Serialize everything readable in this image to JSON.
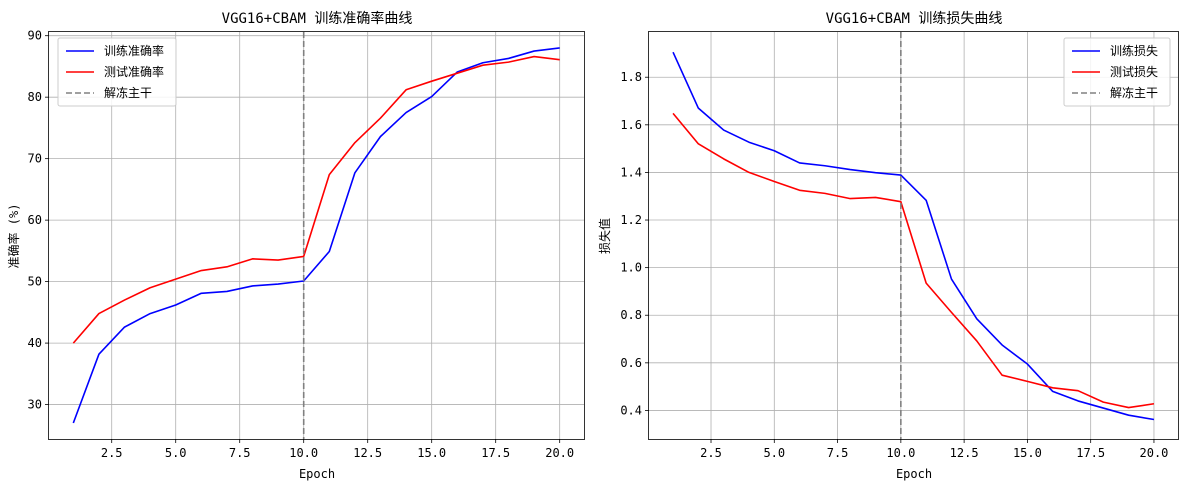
{
  "chart_data": [
    {
      "type": "line",
      "title": "VGG16+CBAM 训练准确率曲线",
      "xlabel": "Epoch",
      "ylabel": "准确率 (%)",
      "xlim": [
        0.05,
        20.95
      ],
      "ylim": [
        24.4,
        90.6
      ],
      "xticks": [
        2.5,
        5.0,
        7.5,
        10.0,
        12.5,
        15.0,
        17.5,
        20.0
      ],
      "xtick_labels": [
        "2.5",
        "5.0",
        "7.5",
        "10.0",
        "12.5",
        "15.0",
        "17.5",
        "20.0"
      ],
      "yticks": [
        30,
        40,
        50,
        60,
        70,
        80,
        90
      ],
      "ytick_labels": [
        "30",
        "40",
        "50",
        "60",
        "70",
        "80",
        "90"
      ],
      "grid": true,
      "legend_position": "top-left",
      "x": [
        1,
        2,
        3,
        4,
        5,
        6,
        7,
        8,
        9,
        10,
        11,
        12,
        13,
        14,
        15,
        16,
        17,
        18,
        19,
        20
      ],
      "series": [
        {
          "name": "训练准确率",
          "color": "#0000ff",
          "style": "solid",
          "values": [
            27.0,
            38.2,
            42.6,
            44.8,
            46.2,
            48.1,
            48.4,
            49.3,
            49.6,
            50.1,
            54.9,
            67.7,
            73.6,
            77.5,
            80.1,
            84.1,
            85.6,
            86.3,
            87.5,
            88.0
          ]
        },
        {
          "name": "测试准确率",
          "color": "#ff0000",
          "style": "solid",
          "values": [
            40.0,
            44.8,
            47.0,
            49.0,
            50.4,
            51.8,
            52.4,
            53.7,
            53.5,
            54.1,
            67.4,
            72.6,
            76.6,
            81.2,
            82.6,
            83.9,
            85.2,
            85.7,
            86.6,
            86.1
          ]
        }
      ],
      "vline": {
        "name": "解冻主干",
        "x": 10,
        "color": "#808080",
        "style": "dashed"
      }
    },
    {
      "type": "line",
      "title": "VGG16+CBAM 训练损失曲线",
      "xlabel": "Epoch",
      "ylabel": "损失值",
      "xlim": [
        0.05,
        20.95
      ],
      "ylim": [
        0.28,
        1.99
      ],
      "xticks": [
        2.5,
        5.0,
        7.5,
        10.0,
        12.5,
        15.0,
        17.5,
        20.0
      ],
      "xtick_labels": [
        "2.5",
        "5.0",
        "7.5",
        "10.0",
        "12.5",
        "15.0",
        "17.5",
        "20.0"
      ],
      "yticks": [
        0.4,
        0.6,
        0.8,
        1.0,
        1.2,
        1.4,
        1.6,
        1.8
      ],
      "ytick_labels": [
        "0.4",
        "0.6",
        "0.8",
        "1.0",
        "1.2",
        "1.4",
        "1.6",
        "1.8"
      ],
      "grid": true,
      "legend_position": "top-right",
      "x": [
        1,
        2,
        3,
        4,
        5,
        6,
        7,
        8,
        9,
        10,
        11,
        12,
        13,
        14,
        15,
        16,
        17,
        18,
        19,
        20
      ],
      "series": [
        {
          "name": "训练损失",
          "color": "#0000ff",
          "style": "solid",
          "values": [
            1.905,
            1.67,
            1.578,
            1.527,
            1.491,
            1.44,
            1.428,
            1.412,
            1.399,
            1.389,
            1.283,
            0.952,
            0.785,
            0.675,
            0.595,
            0.48,
            0.44,
            0.41,
            0.38,
            0.362
          ]
        },
        {
          "name": "测试损失",
          "color": "#ff0000",
          "style": "solid",
          "values": [
            1.648,
            1.52,
            1.457,
            1.4,
            1.362,
            1.325,
            1.312,
            1.29,
            1.295,
            1.277,
            0.935,
            0.812,
            0.692,
            0.548,
            0.522,
            0.495,
            0.483,
            0.435,
            0.412,
            0.428
          ]
        }
      ],
      "vline": {
        "name": "解冻主干",
        "x": 10,
        "color": "#808080",
        "style": "dashed"
      }
    }
  ]
}
